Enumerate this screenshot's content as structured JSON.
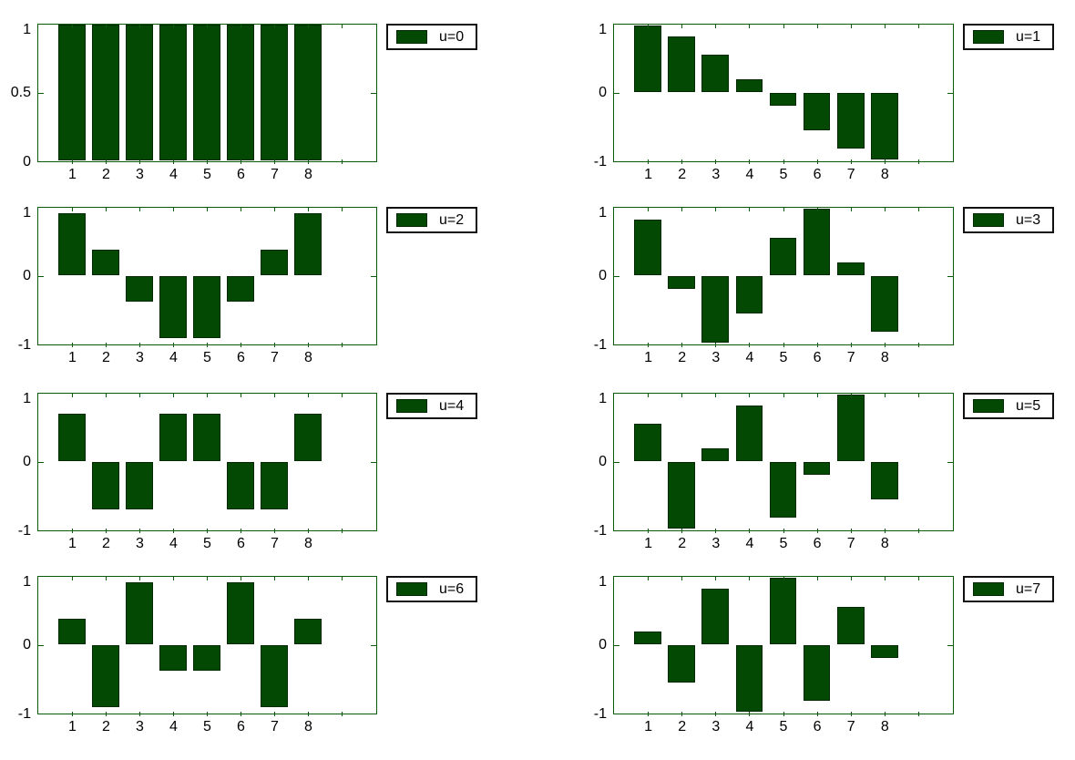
{
  "figure": {
    "background": "#ffffff",
    "bar_fill_color": "#034903",
    "bar_edge_color": "#022a02",
    "axis_line_color": "#0b5a0b",
    "tick_color": "#0b5a0b",
    "text_color": "#000000",
    "legend_border_color": "#111111",
    "legend_background": "#ffffff"
  },
  "chart_data": {
    "type": "bar",
    "title": "",
    "xlabel": "",
    "ylabel": "",
    "grid": false,
    "layout": "4 rows x 2 columns of bar subplots (8-point DCT basis functions)",
    "categories": [
      1,
      2,
      3,
      4,
      5,
      6,
      7,
      8
    ],
    "x_tick_labels": [
      "1",
      "2",
      "3",
      "4",
      "5",
      "6",
      "7",
      "8"
    ],
    "xlim": [
      0,
      10
    ],
    "bar_relative_width": 0.8,
    "legend_position": "outside right, top-aligned with each subplot",
    "subplots": [
      {
        "legend": "u=0",
        "ylim": [
          0,
          1
        ],
        "y_tick_labels": [
          "0",
          "0.5",
          "1"
        ],
        "values": [
          1,
          1,
          1,
          1,
          1,
          1,
          1,
          1
        ]
      },
      {
        "legend": "u=1",
        "ylim": [
          -1,
          1
        ],
        "y_tick_labels": [
          "-1",
          "0",
          "1"
        ],
        "values": [
          0.981,
          0.831,
          0.556,
          0.195,
          -0.195,
          -0.556,
          -0.831,
          -0.981
        ]
      },
      {
        "legend": "u=2",
        "ylim": [
          -1,
          1
        ],
        "y_tick_labels": [
          "-1",
          "0",
          "1"
        ],
        "values": [
          0.924,
          0.383,
          -0.383,
          -0.924,
          -0.924,
          -0.383,
          0.383,
          0.924
        ]
      },
      {
        "legend": "u=3",
        "ylim": [
          -1,
          1
        ],
        "y_tick_labels": [
          "-1",
          "0",
          "1"
        ],
        "values": [
          0.831,
          -0.195,
          -0.981,
          -0.556,
          0.556,
          0.981,
          0.195,
          -0.831
        ]
      },
      {
        "legend": "u=4",
        "ylim": [
          -1,
          1
        ],
        "y_tick_labels": [
          "-1",
          "0",
          "1"
        ],
        "values": [
          0.707,
          -0.707,
          -0.707,
          0.707,
          0.707,
          -0.707,
          -0.707,
          0.707
        ]
      },
      {
        "legend": "u=5",
        "ylim": [
          -1,
          1
        ],
        "y_tick_labels": [
          "-1",
          "0",
          "1"
        ],
        "values": [
          0.556,
          -0.981,
          0.195,
          0.831,
          -0.831,
          -0.195,
          0.981,
          -0.556
        ]
      },
      {
        "legend": "u=6",
        "ylim": [
          -1,
          1
        ],
        "y_tick_labels": [
          "-1",
          "0",
          "1"
        ],
        "values": [
          0.383,
          -0.924,
          0.924,
          -0.383,
          -0.383,
          0.924,
          -0.924,
          0.383
        ]
      },
      {
        "legend": "u=7",
        "ylim": [
          -1,
          1
        ],
        "y_tick_labels": [
          "-1",
          "0",
          "1"
        ],
        "values": [
          0.195,
          -0.556,
          0.831,
          -0.981,
          0.981,
          -0.831,
          0.556,
          -0.195
        ]
      }
    ]
  }
}
